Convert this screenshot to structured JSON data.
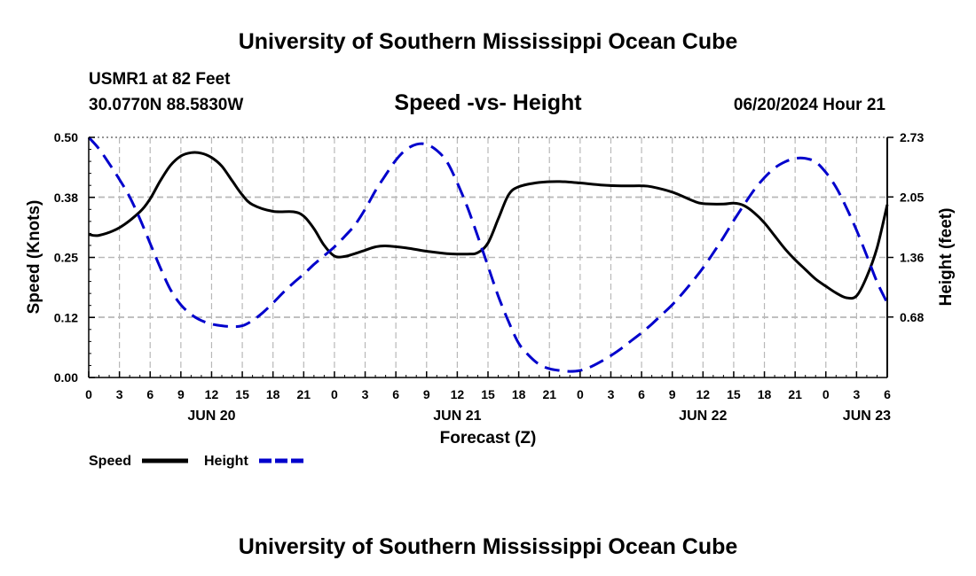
{
  "header": {
    "title": "University of Southern Mississippi Ocean Cube",
    "station": "USMR1 at 82 Feet",
    "coords": "30.0770N  88.5830W",
    "issued": "06/20/2024 Hour 21",
    "footer_title": "University of Southern Mississippi Ocean Cube"
  },
  "chart_data": {
    "type": "line",
    "title": "Speed -vs- Height",
    "xlabel": "Forecast (Z)",
    "ylabel_left": "Speed (Knots)",
    "ylabel_right": "Height (feet)",
    "x_unit": "hours since 06/20 00Z",
    "xlim": [
      0,
      78
    ],
    "ylim_left": [
      0,
      0.5
    ],
    "ylim_right": [
      -0.01,
      2.73
    ],
    "x_ticks": [
      {
        "x": 0,
        "label": "0"
      },
      {
        "x": 3,
        "label": "3"
      },
      {
        "x": 6,
        "label": "6"
      },
      {
        "x": 9,
        "label": "9"
      },
      {
        "x": 12,
        "label": "12"
      },
      {
        "x": 15,
        "label": "15"
      },
      {
        "x": 18,
        "label": "18"
      },
      {
        "x": 21,
        "label": "21"
      },
      {
        "x": 24,
        "label": "0"
      },
      {
        "x": 27,
        "label": "3"
      },
      {
        "x": 30,
        "label": "6"
      },
      {
        "x": 33,
        "label": "9"
      },
      {
        "x": 36,
        "label": "12"
      },
      {
        "x": 39,
        "label": "15"
      },
      {
        "x": 42,
        "label": "18"
      },
      {
        "x": 45,
        "label": "21"
      },
      {
        "x": 48,
        "label": "0"
      },
      {
        "x": 51,
        "label": "3"
      },
      {
        "x": 54,
        "label": "6"
      },
      {
        "x": 57,
        "label": "9"
      },
      {
        "x": 60,
        "label": "12"
      },
      {
        "x": 63,
        "label": "15"
      },
      {
        "x": 66,
        "label": "18"
      },
      {
        "x": 69,
        "label": "21"
      },
      {
        "x": 72,
        "label": "0"
      },
      {
        "x": 75,
        "label": "3"
      },
      {
        "x": 78,
        "label": "6"
      }
    ],
    "date_labels": [
      {
        "x": 12,
        "label": "JUN 20"
      },
      {
        "x": 36,
        "label": "JUN 21"
      },
      {
        "x": 60,
        "label": "JUN 22"
      },
      {
        "x": 76,
        "label": "JUN 23"
      }
    ],
    "left_ticks": [
      {
        "v": 0.0,
        "label": "0.00"
      },
      {
        "v": 0.125,
        "label": "0.12"
      },
      {
        "v": 0.25,
        "label": "0.25"
      },
      {
        "v": 0.375,
        "label": "0.38"
      },
      {
        "v": 0.5,
        "label": "0.50"
      }
    ],
    "right_ticks": [
      {
        "v": 0.68,
        "label": "0.68"
      },
      {
        "v": 1.36,
        "label": "1.36"
      },
      {
        "v": 2.05,
        "label": "2.05"
      },
      {
        "v": 2.73,
        "label": "2.73"
      }
    ],
    "series": [
      {
        "name": "Speed",
        "axis": "left",
        "color": "#000000",
        "dash": "none",
        "points": [
          [
            0,
            0.298
          ],
          [
            1,
            0.296
          ],
          [
            3,
            0.312
          ],
          [
            5,
            0.345
          ],
          [
            6,
            0.372
          ],
          [
            7,
            0.41
          ],
          [
            8,
            0.442
          ],
          [
            9,
            0.461
          ],
          [
            10,
            0.468
          ],
          [
            11,
            0.467
          ],
          [
            12,
            0.458
          ],
          [
            13,
            0.44
          ],
          [
            14,
            0.41
          ],
          [
            15,
            0.38
          ],
          [
            16,
            0.36
          ],
          [
            18,
            0.346
          ],
          [
            20,
            0.345
          ],
          [
            21,
            0.336
          ],
          [
            22,
            0.31
          ],
          [
            23,
            0.275
          ],
          [
            24,
            0.253
          ],
          [
            25,
            0.252
          ],
          [
            26,
            0.258
          ],
          [
            27,
            0.265
          ],
          [
            28,
            0.272
          ],
          [
            29,
            0.274
          ],
          [
            31,
            0.27
          ],
          [
            33,
            0.263
          ],
          [
            35,
            0.258
          ],
          [
            37,
            0.257
          ],
          [
            38,
            0.26
          ],
          [
            39,
            0.28
          ],
          [
            40,
            0.33
          ],
          [
            41,
            0.38
          ],
          [
            42,
            0.397
          ],
          [
            44,
            0.406
          ],
          [
            46,
            0.408
          ],
          [
            48,
            0.405
          ],
          [
            50,
            0.401
          ],
          [
            52,
            0.399
          ],
          [
            54,
            0.399
          ],
          [
            55,
            0.397
          ],
          [
            57,
            0.386
          ],
          [
            59,
            0.368
          ],
          [
            60,
            0.362
          ],
          [
            62,
            0.361
          ],
          [
            63,
            0.363
          ],
          [
            64,
            0.358
          ],
          [
            65,
            0.343
          ],
          [
            66,
            0.322
          ],
          [
            67,
            0.295
          ],
          [
            68,
            0.268
          ],
          [
            69,
            0.245
          ],
          [
            70,
            0.225
          ],
          [
            71,
            0.205
          ],
          [
            72,
            0.19
          ],
          [
            73,
            0.176
          ],
          [
            74,
            0.166
          ],
          [
            75,
            0.17
          ],
          [
            76,
            0.21
          ],
          [
            77,
            0.27
          ],
          [
            78,
            0.36
          ]
        ]
      },
      {
        "name": "Height",
        "axis": "right",
        "color": "#0000cc",
        "dash": "dashed",
        "points": [
          [
            0,
            2.73
          ],
          [
            1,
            2.6
          ],
          [
            2,
            2.43
          ],
          [
            3,
            2.25
          ],
          [
            4,
            2.05
          ],
          [
            5,
            1.8
          ],
          [
            6,
            1.52
          ],
          [
            7,
            1.24
          ],
          [
            8,
            0.99
          ],
          [
            9,
            0.82
          ],
          [
            10,
            0.71
          ],
          [
            11,
            0.64
          ],
          [
            12,
            0.6
          ],
          [
            13,
            0.58
          ],
          [
            14,
            0.57
          ],
          [
            15,
            0.58
          ],
          [
            16,
            0.64
          ],
          [
            17,
            0.73
          ],
          [
            18,
            0.84
          ],
          [
            19,
            0.96
          ],
          [
            20,
            1.07
          ],
          [
            21,
            1.17
          ],
          [
            22,
            1.28
          ],
          [
            23,
            1.38
          ],
          [
            24,
            1.48
          ],
          [
            25,
            1.6
          ],
          [
            26,
            1.73
          ],
          [
            27,
            1.91
          ],
          [
            28,
            2.12
          ],
          [
            29,
            2.3
          ],
          [
            30,
            2.47
          ],
          [
            31,
            2.59
          ],
          [
            32,
            2.65
          ],
          [
            33,
            2.65
          ],
          [
            34,
            2.58
          ],
          [
            35,
            2.45
          ],
          [
            36,
            2.21
          ],
          [
            37,
            1.93
          ],
          [
            38,
            1.6
          ],
          [
            39,
            1.26
          ],
          [
            40,
            0.92
          ],
          [
            41,
            0.63
          ],
          [
            42,
            0.38
          ],
          [
            43,
            0.24
          ],
          [
            44,
            0.14
          ],
          [
            45,
            0.09
          ],
          [
            46,
            0.07
          ],
          [
            47,
            0.06
          ],
          [
            48,
            0.07
          ],
          [
            49,
            0.11
          ],
          [
            50,
            0.17
          ],
          [
            51,
            0.24
          ],
          [
            52,
            0.32
          ],
          [
            53,
            0.41
          ],
          [
            54,
            0.5
          ],
          [
            55,
            0.6
          ],
          [
            56,
            0.71
          ],
          [
            57,
            0.82
          ],
          [
            58,
            0.95
          ],
          [
            59,
            1.09
          ],
          [
            60,
            1.24
          ],
          [
            61,
            1.41
          ],
          [
            62,
            1.59
          ],
          [
            63,
            1.78
          ],
          [
            64,
            1.96
          ],
          [
            65,
            2.13
          ],
          [
            66,
            2.27
          ],
          [
            67,
            2.38
          ],
          [
            68,
            2.45
          ],
          [
            69,
            2.49
          ],
          [
            70,
            2.49
          ],
          [
            71,
            2.45
          ],
          [
            72,
            2.33
          ],
          [
            73,
            2.16
          ],
          [
            74,
            1.93
          ],
          [
            75,
            1.67
          ],
          [
            76,
            1.38
          ],
          [
            77,
            1.08
          ],
          [
            78,
            0.84
          ]
        ]
      }
    ],
    "legend": [
      {
        "label": "Speed",
        "color": "#000000",
        "dash": "none"
      },
      {
        "label": "Height",
        "color": "#0000cc",
        "dash": "dashed"
      }
    ]
  }
}
